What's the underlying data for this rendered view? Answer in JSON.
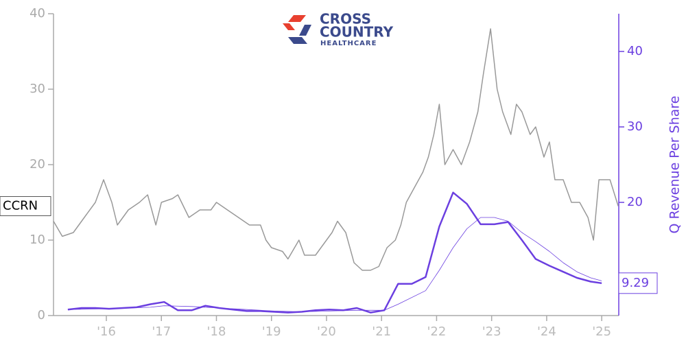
{
  "chart_data": {
    "type": "line",
    "logo_lines": [
      "CROSS",
      "COUNTRY",
      "HEALTHCARE"
    ],
    "y2label": "Q Revenue Per Share",
    "xlim": [
      2015.04,
      2025.31
    ],
    "xticks": [
      {
        "value": 2016,
        "label": "'16"
      },
      {
        "value": 2017,
        "label": "'17"
      },
      {
        "value": 2018,
        "label": "'18"
      },
      {
        "value": 2019,
        "label": "'19"
      },
      {
        "value": 2020,
        "label": "'20"
      },
      {
        "value": 2021,
        "label": "'21"
      },
      {
        "value": 2022,
        "label": "'22"
      },
      {
        "value": 2023,
        "label": "'23"
      },
      {
        "value": 2024,
        "label": "'24"
      },
      {
        "value": 2025,
        "label": "'25"
      }
    ],
    "ylim": [
      0,
      40
    ],
    "yticks": [
      0,
      10,
      20,
      30,
      40
    ],
    "y2lim": [
      5,
      45
    ],
    "y2ticks": [
      20,
      30,
      40
    ],
    "axis_color": "#aaaaaa",
    "y2_color": "#6b3fe0",
    "series": [
      {
        "name": "CCRN",
        "color": "#999999",
        "axis": "y",
        "x": [
          2015.04,
          2015.2,
          2015.4,
          2015.6,
          2015.8,
          2015.95,
          2016.1,
          2016.2,
          2016.4,
          2016.6,
          2016.75,
          2016.9,
          2017.0,
          2017.2,
          2017.3,
          2017.5,
          2017.7,
          2017.9,
          2018.0,
          2018.2,
          2018.4,
          2018.6,
          2018.8,
          2018.9,
          2019.0,
          2019.2,
          2019.3,
          2019.5,
          2019.6,
          2019.8,
          2019.9,
          2020.1,
          2020.2,
          2020.35,
          2020.5,
          2020.65,
          2020.8,
          2020.95,
          2021.1,
          2021.25,
          2021.35,
          2021.45,
          2021.6,
          2021.75,
          2021.85,
          2021.95,
          2022.05,
          2022.15,
          2022.3,
          2022.45,
          2022.6,
          2022.75,
          2022.85,
          2022.98,
          2023.1,
          2023.2,
          2023.35,
          2023.45,
          2023.55,
          2023.7,
          2023.8,
          2023.95,
          2024.05,
          2024.15,
          2024.3,
          2024.45,
          2024.6,
          2024.75,
          2024.85,
          2024.95,
          2025.15,
          2025.3
        ],
        "values": [
          12.5,
          10.5,
          11,
          13,
          15,
          18,
          15,
          12,
          14,
          15,
          16,
          12,
          15,
          15.5,
          16,
          13,
          14,
          14,
          15,
          14,
          13,
          12,
          12,
          10,
          9,
          8.5,
          7.5,
          10,
          8,
          8,
          9,
          11,
          12.5,
          11,
          7,
          6,
          6,
          6.5,
          9,
          10,
          12,
          15,
          17,
          19,
          21,
          24,
          28,
          20,
          22,
          20,
          23,
          27,
          32,
          38,
          30,
          27,
          24,
          28,
          27,
          24,
          25,
          21,
          23,
          18,
          18,
          15,
          15,
          13,
          10,
          18,
          18,
          14.5
        ]
      },
      {
        "color": "#6b3fe0",
        "axis": "y2",
        "x": [
          2015.3,
          2015.55,
          2015.8,
          2016.05,
          2016.3,
          2016.55,
          2016.8,
          2017.05,
          2017.3,
          2017.55,
          2017.8,
          2018.05,
          2018.3,
          2018.55,
          2018.8,
          2019.05,
          2019.3,
          2019.55,
          2019.8,
          2020.05,
          2020.3,
          2020.55,
          2020.8,
          2021.05,
          2021.3,
          2021.55,
          2021.8,
          2022.05,
          2022.3,
          2022.55,
          2022.8,
          2023.05,
          2023.3,
          2023.55,
          2023.8,
          2024.05,
          2024.3,
          2024.55,
          2024.8,
          2025.0
        ],
        "values": [
          5.8,
          6,
          6,
          5.9,
          6,
          6.1,
          6.5,
          6.8,
          5.7,
          5.7,
          6.3,
          6,
          5.8,
          5.6,
          5.6,
          5.5,
          5.4,
          5.5,
          5.7,
          5.8,
          5.7,
          6,
          5.4,
          5.7,
          9.2,
          9.2,
          10.1,
          16.8,
          21.3,
          19.8,
          17.1,
          17.1,
          17.4,
          15,
          12.5,
          11.6,
          10.8,
          10,
          9.5,
          9.29
        ]
      },
      {
        "color": "#6b3fe0",
        "axis": "y2",
        "x": [
          2015.3,
          2016.0,
          2016.8,
          2017.05,
          2017.55,
          2018.05,
          2018.55,
          2019.05,
          2019.55,
          2020.05,
          2020.55,
          2021.05,
          2021.3,
          2021.8,
          2022.05,
          2022.3,
          2022.55,
          2022.8,
          2023.05,
          2023.3,
          2023.55,
          2023.8,
          2024.05,
          2024.3,
          2024.55,
          2024.8,
          2025.0
        ],
        "values": [
          5.8,
          5.9,
          6.1,
          6.3,
          6.2,
          6,
          5.8,
          5.6,
          5.5,
          5.6,
          5.7,
          5.7,
          6.5,
          8.3,
          11,
          14,
          16.5,
          18,
          18,
          17.5,
          16,
          14.8,
          13.5,
          12,
          10.8,
          10,
          9.6
        ]
      }
    ]
  }
}
